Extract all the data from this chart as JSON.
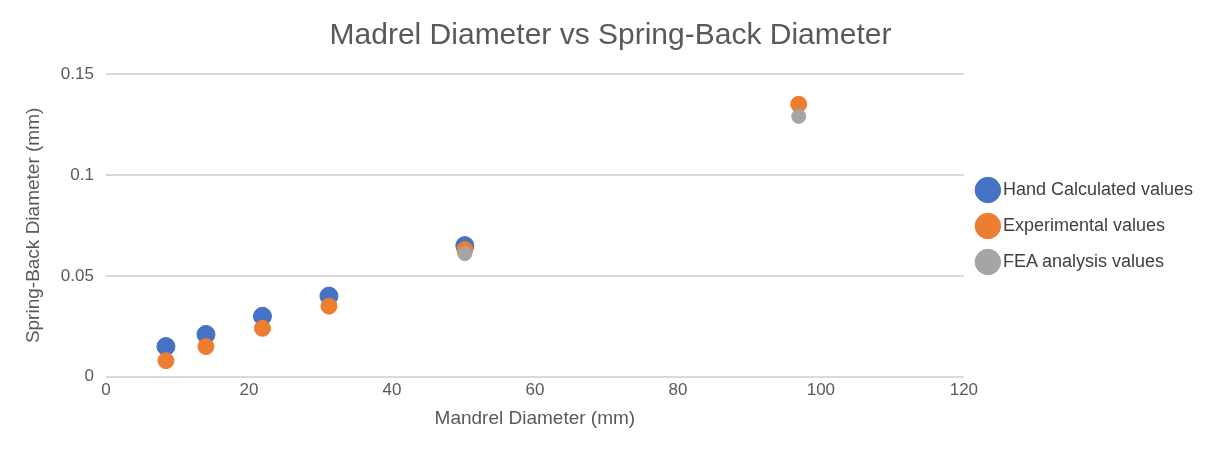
{
  "chart_data": {
    "type": "scatter",
    "title": "Madrel Diameter vs Spring-Back Diameter",
    "xlabel": "Mandrel Diameter (mm)",
    "ylabel": "Spring-Back Diameter (mm)",
    "x": [
      8.4,
      14,
      21.9,
      31.2,
      50.2,
      96.9
    ],
    "series": [
      {
        "name": "Hand Calculated values",
        "color": "#4472c4",
        "values": [
          0.015,
          0.021,
          0.03,
          0.04,
          0.065,
          null
        ]
      },
      {
        "name": "Experimental values",
        "color": "#ed7d31",
        "values": [
          0.008,
          0.015,
          0.024,
          0.035,
          0.063,
          0.135
        ]
      },
      {
        "name": "FEA analysis values",
        "color": "#a5a5a5",
        "x": [
          50.2,
          96.9
        ],
        "values": [
          0.061,
          0.129
        ]
      }
    ],
    "xlim": [
      0,
      120
    ],
    "xticks": [
      0,
      20,
      40,
      60,
      80,
      100,
      120
    ],
    "ylim": [
      0,
      0.15
    ],
    "yticks": [
      0,
      0.05,
      0.1,
      0.15
    ],
    "grid": "y",
    "legend": "right",
    "marker": "circle"
  }
}
